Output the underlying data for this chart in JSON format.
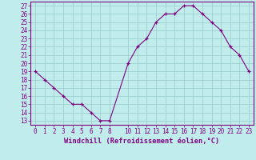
{
  "x": [
    0,
    1,
    2,
    3,
    4,
    5,
    6,
    7,
    8,
    10,
    11,
    12,
    13,
    14,
    15,
    16,
    17,
    18,
    19,
    20,
    21,
    22,
    23
  ],
  "y": [
    19,
    18,
    17,
    16,
    15,
    15,
    14,
    13,
    13,
    20,
    22,
    23,
    25,
    26,
    26,
    27,
    27,
    26,
    25,
    24,
    22,
    21,
    19
  ],
  "line_color": "#800080",
  "bg_color": "#c0ecec",
  "grid_color": "#99cccc",
  "ylabel_ticks": [
    13,
    14,
    15,
    16,
    17,
    18,
    19,
    20,
    21,
    22,
    23,
    24,
    25,
    26,
    27
  ],
  "xticks": [
    0,
    1,
    2,
    3,
    4,
    5,
    6,
    7,
    8,
    10,
    11,
    12,
    13,
    14,
    15,
    16,
    17,
    18,
    19,
    20,
    21,
    22,
    23
  ],
  "ylim": [
    12.5,
    27.5
  ],
  "xlim": [
    -0.5,
    23.5
  ],
  "xlabel": "Windchill (Refroidissement éolien,°C)",
  "axis_color": "#800080",
  "font_color": "#800080",
  "tick_fontsize": 5.5,
  "xlabel_fontsize": 6.2
}
